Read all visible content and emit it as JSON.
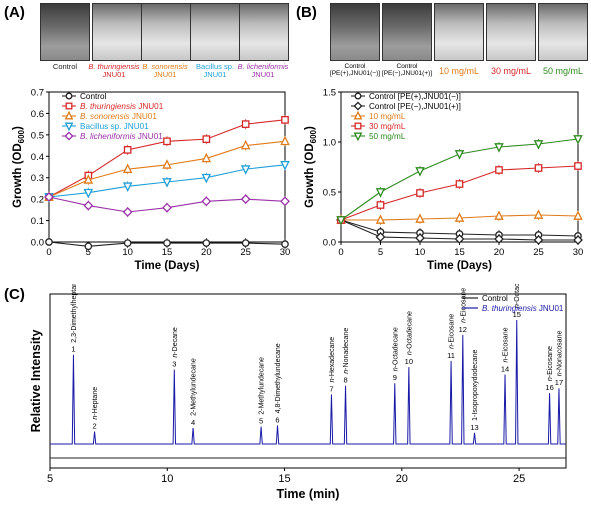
{
  "panel_labels": [
    "(A)",
    "(B)",
    "(C)"
  ],
  "photos_a": [
    {
      "line1": "Control",
      "line2": "",
      "color": "#222222"
    },
    {
      "line1": "B. thuringiensis",
      "line2": "JNU01",
      "color": "#d62728"
    },
    {
      "line1": "B. sonorensis",
      "line2": "JNU01",
      "color": "#e07b1a"
    },
    {
      "line1": "Bacillus sp.",
      "line2": "JNU01",
      "color": "#1f9fd8"
    },
    {
      "line1": "B. licheniformis",
      "line2": "JNU01",
      "color": "#9b30a8"
    }
  ],
  "photos_b": [
    {
      "line1": "Control",
      "line2": "[PE(+),JNU01(−)]",
      "color": "#222222"
    },
    {
      "line1": "Control",
      "line2": "[PE(−),JNU01(+)]",
      "color": "#222222"
    },
    {
      "line1": "10 mg/mL",
      "line2": "",
      "color": "#e07b1a"
    },
    {
      "line1": "30 mg/mL",
      "line2": "",
      "color": "#d62728"
    },
    {
      "line1": "50 mg/mL",
      "line2": "",
      "color": "#2e8b1f"
    }
  ],
  "chart_data": [
    {
      "type": "line",
      "panel": "(A)",
      "xlabel": "Time (Days)",
      "ylabel": "Growth (OD600)",
      "xlim": [
        0,
        30
      ],
      "ylim": [
        0,
        0.7
      ],
      "xticks": [
        0,
        5,
        10,
        15,
        20,
        25,
        30
      ],
      "yticks": [
        0.0,
        0.1,
        0.2,
        0.3,
        0.4,
        0.5,
        0.6,
        0.7
      ],
      "ytick_labels": [
        "0.0",
        "0.1",
        "0.2",
        "0.3",
        "0.4",
        "0.5",
        "0.6",
        "0.7"
      ],
      "x": [
        0,
        5,
        10,
        15,
        20,
        25,
        30
      ],
      "legend_position": "top-left",
      "series": [
        {
          "name": "Control",
          "color": "#222222",
          "marker": "circle",
          "values": [
            0.0,
            -0.02,
            -0.005,
            -0.005,
            -0.005,
            -0.005,
            -0.01
          ]
        },
        {
          "name": "B. thuringiensis JNU01",
          "color": "#d62728",
          "marker": "square",
          "values": [
            0.21,
            0.31,
            0.43,
            0.47,
            0.48,
            0.55,
            0.57
          ]
        },
        {
          "name": "B. sonorensis JNU01",
          "color": "#e07b1a",
          "marker": "triangle-up",
          "values": [
            0.21,
            0.29,
            0.34,
            0.36,
            0.39,
            0.45,
            0.47
          ]
        },
        {
          "name": "Bacillus sp. JNU01",
          "color": "#1f9fd8",
          "marker": "triangle-down",
          "values": [
            0.21,
            0.23,
            0.26,
            0.28,
            0.3,
            0.34,
            0.36
          ]
        },
        {
          "name": "B. licheniformis JNU01",
          "color": "#9b30a8",
          "marker": "diamond",
          "values": [
            0.21,
            0.17,
            0.14,
            0.16,
            0.19,
            0.2,
            0.19
          ]
        }
      ]
    },
    {
      "type": "line",
      "panel": "(B)",
      "xlabel": "Time (Days)",
      "ylabel": "Growth (OD600)",
      "xlim": [
        0,
        30
      ],
      "ylim": [
        0,
        1.5
      ],
      "xticks": [
        0,
        5,
        10,
        15,
        20,
        25,
        30
      ],
      "yticks": [
        0.0,
        0.5,
        1.0,
        1.5
      ],
      "ytick_labels": [
        "0.0",
        "0.5",
        "1.0",
        "1.5"
      ],
      "x": [
        0,
        5,
        10,
        15,
        20,
        25,
        30
      ],
      "legend_position": "top-left",
      "series": [
        {
          "name": "Control [PE(+),JNU01(−)]",
          "color": "#222222",
          "marker": "circle",
          "values": [
            0.22,
            0.1,
            0.09,
            0.08,
            0.07,
            0.07,
            0.06
          ]
        },
        {
          "name": "Control [PE(−),JNU01(+)]",
          "color": "#222222",
          "marker": "diamond",
          "values": [
            0.22,
            0.05,
            0.04,
            0.03,
            0.03,
            0.02,
            0.02
          ]
        },
        {
          "name": "10 mg/mL",
          "color": "#e07b1a",
          "marker": "triangle-up",
          "values": [
            0.22,
            0.22,
            0.23,
            0.24,
            0.26,
            0.27,
            0.26
          ]
        },
        {
          "name": "30 mg/mL",
          "color": "#d62728",
          "marker": "square",
          "values": [
            0.22,
            0.37,
            0.49,
            0.58,
            0.72,
            0.74,
            0.76
          ]
        },
        {
          "name": "50 mg/mL",
          "color": "#2e8b1f",
          "marker": "triangle-down",
          "values": [
            0.22,
            0.5,
            0.71,
            0.88,
            0.95,
            0.98,
            1.03
          ]
        }
      ]
    },
    {
      "type": "line",
      "panel": "(C)",
      "xlabel": "Time (min)",
      "ylabel": "Relative Intensity",
      "xlim": [
        5,
        27
      ],
      "xticks": [
        5,
        10,
        15,
        20,
        25
      ],
      "legend_position": "top-right",
      "legend": [
        {
          "name": "Control",
          "color": "#222222"
        },
        {
          "name": "B. thuringiensis JNU01",
          "color": "#1a1aa8"
        }
      ],
      "peaks": [
        {
          "num": "1",
          "label": "2,3-Dimethylheptane",
          "rt": 6.0,
          "height": 0.72
        },
        {
          "num": "2",
          "label": "n-Heptane",
          "rt": 6.9,
          "height": 0.1
        },
        {
          "num": "3",
          "label": "n-Decane",
          "rt": 10.3,
          "height": 0.6
        },
        {
          "num": "4",
          "label": "2-Methylundecane",
          "rt": 11.1,
          "height": 0.13
        },
        {
          "num": "5",
          "label": "2-Methylundecane",
          "rt": 14.0,
          "height": 0.14
        },
        {
          "num": "6",
          "label": "4,8-Dimethylundecane",
          "rt": 14.7,
          "height": 0.15
        },
        {
          "num": "7",
          "label": "n-Hexadecane",
          "rt": 17.0,
          "height": 0.4
        },
        {
          "num": "8",
          "label": "n-Nonadecane",
          "rt": 17.6,
          "height": 0.47
        },
        {
          "num": "9",
          "label": "n-Octadecane",
          "rt": 19.7,
          "height": 0.49
        },
        {
          "num": "10",
          "label": "n-Octadecane",
          "rt": 20.3,
          "height": 0.62
        },
        {
          "num": "11",
          "label": "n-Eicosane",
          "rt": 22.1,
          "height": 0.67
        },
        {
          "num": "12",
          "label": "n-Eicosane",
          "rt": 22.6,
          "height": 0.88
        },
        {
          "num": "13",
          "label": "1-Isopropoxydodecane",
          "rt": 23.1,
          "height": 0.09
        },
        {
          "num": "14",
          "label": "n-Eicosane",
          "rt": 24.4,
          "height": 0.56
        },
        {
          "num": "15",
          "label": "n-Octacosane",
          "rt": 24.9,
          "height": 1.0
        },
        {
          "num": "16",
          "label": "n-Eicosane",
          "rt": 26.3,
          "height": 0.41
        },
        {
          "num": "17",
          "label": "n-Nonacosane",
          "rt": 26.7,
          "height": 0.45
        }
      ]
    }
  ]
}
